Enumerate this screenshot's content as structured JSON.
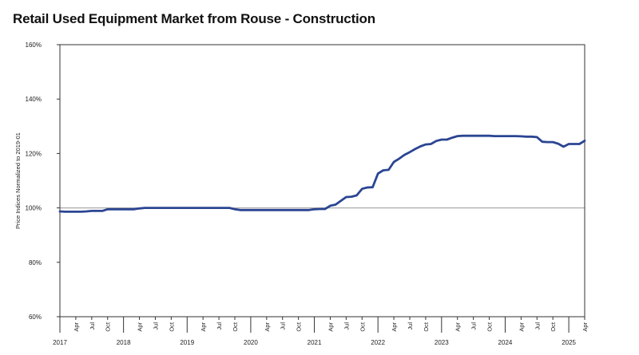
{
  "chart_data": {
    "type": "line",
    "title": "Retail Used Equipment Market from Rouse - Construction",
    "ylabel": "Price Indices Normalized to 2019-01",
    "xlabel": "",
    "ylim": [
      60,
      160
    ],
    "yticks": [
      60,
      80,
      100,
      120,
      140,
      160
    ],
    "ytick_labels": [
      "60%",
      "80%",
      "100%",
      "120%",
      "140%",
      "160%"
    ],
    "reference_line": 100,
    "reference_color": "#aaaaaa",
    "grid": false,
    "legend": "none",
    "x_start": "2017-01",
    "x_end": "2025-04",
    "year_labels": [
      "2017",
      "2018",
      "2019",
      "2020",
      "2021",
      "2022",
      "2023",
      "2024",
      "2025"
    ],
    "month_labels": [
      "Apr",
      "Jul",
      "Oct"
    ],
    "series_color": "#2b4592",
    "series": [
      {
        "x": [
          "2017-01",
          "2017-02",
          "2017-03",
          "2017-04",
          "2017-05",
          "2017-06",
          "2017-07",
          "2017-08",
          "2017-09",
          "2017-10",
          "2017-11",
          "2017-12",
          "2018-01",
          "2018-02",
          "2018-03",
          "2018-04",
          "2018-05",
          "2018-06",
          "2018-07",
          "2018-08",
          "2018-09",
          "2018-10",
          "2018-11",
          "2018-12",
          "2019-01",
          "2019-02",
          "2019-03",
          "2019-04",
          "2019-05",
          "2019-06",
          "2019-07",
          "2019-08",
          "2019-09",
          "2019-10",
          "2019-11",
          "2019-12",
          "2020-01",
          "2020-02",
          "2020-03",
          "2020-04",
          "2020-05",
          "2020-06",
          "2020-07",
          "2020-08",
          "2020-09",
          "2020-10",
          "2020-11",
          "2020-12",
          "2021-01",
          "2021-02",
          "2021-03",
          "2021-04",
          "2021-05",
          "2021-06",
          "2021-07",
          "2021-08",
          "2021-09",
          "2021-10",
          "2021-11",
          "2021-12",
          "2022-01",
          "2022-02",
          "2022-03",
          "2022-04",
          "2022-05",
          "2022-06",
          "2022-07",
          "2022-08",
          "2022-09",
          "2022-10",
          "2022-11",
          "2022-12",
          "2023-01",
          "2023-02",
          "2023-03",
          "2023-04",
          "2023-05",
          "2023-06",
          "2023-07",
          "2023-08",
          "2023-09",
          "2023-10",
          "2023-11",
          "2023-12",
          "2024-01",
          "2024-02",
          "2024-03",
          "2024-04",
          "2024-05",
          "2024-06",
          "2024-07",
          "2024-08",
          "2024-09",
          "2024-10",
          "2024-11",
          "2024-12",
          "2025-01",
          "2025-02",
          "2025-03",
          "2025-04"
        ],
        "values": [
          98.7,
          98.6,
          98.6,
          98.6,
          98.6,
          98.7,
          98.9,
          98.9,
          98.9,
          99.5,
          99.5,
          99.5,
          99.5,
          99.5,
          99.5,
          99.8,
          100.0,
          100.0,
          100.0,
          100.0,
          100.0,
          100.0,
          100.0,
          100.0,
          100.0,
          100.0,
          100.0,
          100.0,
          100.0,
          100.0,
          100.0,
          100.0,
          100.0,
          99.5,
          99.2,
          99.2,
          99.2,
          99.2,
          99.2,
          99.2,
          99.2,
          99.2,
          99.2,
          99.2,
          99.2,
          99.2,
          99.2,
          99.2,
          99.5,
          99.6,
          99.6,
          100.8,
          101.2,
          102.6,
          104.0,
          104.1,
          104.6,
          107.0,
          107.5,
          107.6,
          112.6,
          113.8,
          114.0,
          116.9,
          118.1,
          119.5,
          120.5,
          121.6,
          122.6,
          123.3,
          123.5,
          124.6,
          125.1,
          125.1,
          125.8,
          126.4,
          126.5,
          126.5,
          126.5,
          126.5,
          126.5,
          126.5,
          126.4,
          126.4,
          126.4,
          126.4,
          126.4,
          126.3,
          126.2,
          126.2,
          126.0,
          124.3,
          124.2,
          124.2,
          123.6,
          122.5,
          123.5,
          123.5,
          123.5,
          124.7
        ]
      }
    ]
  }
}
